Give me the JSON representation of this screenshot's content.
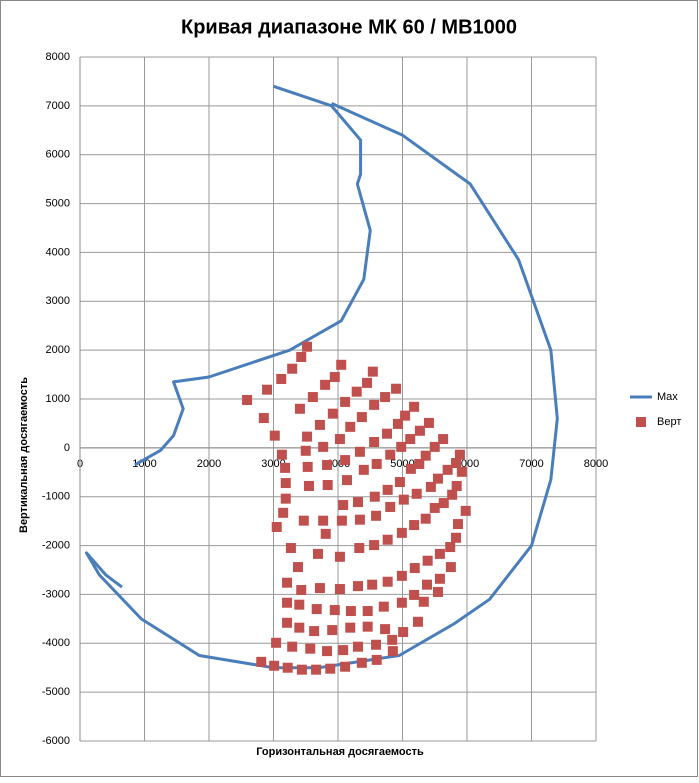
{
  "chart_data": {
    "type": "scatter",
    "title": "Кривая диапазоне МК 60 / МВ1000",
    "x_label": "Горизонтальная  досягаемость",
    "y_label": "Вертикальная  досягаемость",
    "xlim": [
      0,
      8000
    ],
    "xticks": [
      0,
      1000,
      2000,
      3000,
      4000,
      5000,
      6000,
      7000,
      8000
    ],
    "ylim": [
      -6000,
      8000
    ],
    "yticks": [
      -6000,
      -5000,
      -4000,
      -3000,
      -2000,
      -1000,
      0,
      1000,
      2000,
      3000,
      4000,
      5000,
      6000,
      7000,
      8000
    ],
    "grid": true,
    "legend": "right",
    "series": [
      {
        "name": "Max",
        "color": "#4a7ebb",
        "mode": "line",
        "x": [
          850,
          1250,
          1450,
          1600,
          1450,
          2000,
          3250,
          4050,
          4400,
          4500,
          4300,
          4350,
          4350,
          3900,
          3000,
          null,
          3900,
          5000,
          6050,
          6800,
          7300,
          7400,
          7300,
          7000,
          6350,
          5800,
          4950,
          3700,
          3000,
          1850,
          950,
          300,
          100,
          400,
          650
        ],
        "values": [
          -350,
          -50,
          250,
          800,
          1350,
          1450,
          2000,
          2600,
          3450,
          4450,
          5400,
          5600,
          6300,
          7000,
          7400,
          null,
          7050,
          6400,
          5400,
          3850,
          2000,
          600,
          -650,
          -2000,
          -3100,
          -3600,
          -4250,
          -4500,
          -4500,
          -4250,
          -3500,
          -2600,
          -2150,
          -2600,
          -2850
        ]
      },
      {
        "name": "Верт",
        "color": "#c0504d",
        "mode": "marker",
        "x": [
          3520,
          3430,
          3290,
          3120,
          2900,
          2590,
          2850,
          3020,
          4050,
          3950,
          3800,
          3610,
          3410,
          3130,
          4540,
          4450,
          4290,
          4110,
          3920,
          3720,
          3520,
          3180,
          4900,
          4730,
          4560,
          4370,
          4190,
          4030,
          3770,
          3500,
          3190,
          5180,
          5040,
          4930,
          4760,
          4560,
          4340,
          4110,
          3830,
          3530,
          3190,
          5410,
          5270,
          5120,
          4980,
          4810,
          4600,
          4400,
          4140,
          3840,
          3550,
          3150,
          5630,
          5500,
          5360,
          5260,
          5130,
          4960,
          4770,
          4570,
          4310,
          4080,
          3770,
          3470,
          3050,
          5890,
          5830,
          5700,
          5550,
          5440,
          5220,
          5020,
          4810,
          4590,
          4340,
          4060,
          3810,
          3270,
          5920,
          5840,
          5770,
          5640,
          5500,
          5360,
          5180,
          4990,
          4770,
          4560,
          4330,
          4030,
          3690,
          3380,
          5980,
          5860,
          5830,
          5740,
          5580,
          5390,
          5190,
          4990,
          4770,
          4530,
          4310,
          4030,
          3720,
          3430,
          3210,
          5750,
          5580,
          5380,
          5180,
          4990,
          4710,
          4460,
          4200,
          3950,
          3670,
          3400,
          3210,
          5550,
          5330,
          5240,
          5010,
          4730,
          4460,
          4190,
          3910,
          3630,
          3400,
          3210,
          4840,
          4590,
          4310,
          4080,
          3830,
          3570,
          3290,
          3040,
          4850,
          4600,
          4370,
          4110,
          3880,
          3660,
          3440,
          3220,
          3010,
          2810
        ],
        "values": [
          2070,
          1860,
          1620,
          1410,
          1190,
          980,
          610,
          250,
          1700,
          1450,
          1290,
          1040,
          800,
          -140,
          1560,
          1330,
          1150,
          940,
          700,
          470,
          230,
          -410,
          1210,
          1040,
          880,
          630,
          430,
          180,
          20,
          -60,
          -720,
          840,
          660,
          490,
          290,
          120,
          -80,
          -250,
          -350,
          -390,
          -1040,
          510,
          350,
          180,
          20,
          -140,
          -330,
          -450,
          -660,
          -760,
          -780,
          -1330,
          180,
          20,
          -160,
          -330,
          -430,
          -700,
          -860,
          -1000,
          -1110,
          -1170,
          -1490,
          -1490,
          -1620,
          -140,
          -310,
          -450,
          -630,
          -800,
          -940,
          -1060,
          -1210,
          -1390,
          -1470,
          -1490,
          -1760,
          -2050,
          -490,
          -780,
          -960,
          -1130,
          -1230,
          -1450,
          -1580,
          -1740,
          -1880,
          -1990,
          -2050,
          -2230,
          -2170,
          -2440,
          -1290,
          -1560,
          -1840,
          -2030,
          -2170,
          -2310,
          -2460,
          -2620,
          -2740,
          -2800,
          -2830,
          -2890,
          -2870,
          -2910,
          -2760,
          -2440,
          -2680,
          -2800,
          -3010,
          -3170,
          -3250,
          -3340,
          -3340,
          -3320,
          -3300,
          -3210,
          -3170,
          -2950,
          -3150,
          -3560,
          -3770,
          -3710,
          -3660,
          -3680,
          -3730,
          -3750,
          -3680,
          -3580,
          -3930,
          -4030,
          -4070,
          -4140,
          -4160,
          -4110,
          -4070,
          -3990,
          -4160,
          -4340,
          -4400,
          -4480,
          -4520,
          -4540,
          -4540,
          -4500,
          -4460,
          -4380
        ]
      }
    ]
  }
}
